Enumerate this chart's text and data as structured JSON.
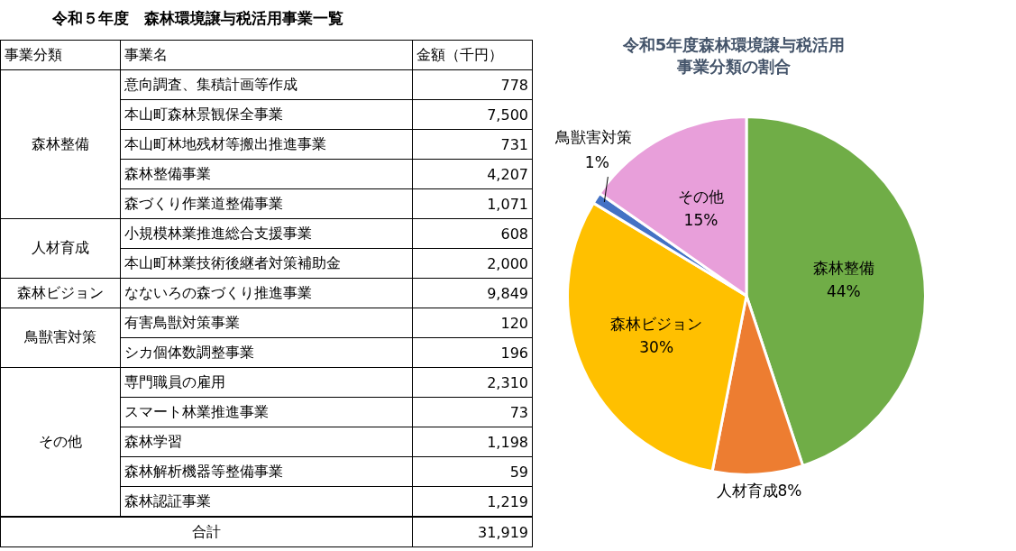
{
  "chart_data": [
    {
      "type": "other",
      "title": "令和５年度　森林環境譲与税活用事業一覧",
      "categories": [
        "意向調査、集積計画等作成",
        "本山町森林景観保全事業",
        "本山町林地残材等搬出推進事業",
        "森林整備事業",
        "森づくり作業道整備事業",
        "小規模林業推進総合支援事業",
        "本山町林業技術後継者対策補助金",
        "なないろの森づくり推進事業",
        "有害鳥獣対策事業",
        "シカ個体数調整事業",
        "専門職員の雇用",
        "スマート林業推進事業",
        "森林学習",
        "森林解析機器等整備事業",
        "森林認証事業"
      ],
      "value_labels": [
        "778",
        "7,500",
        "731",
        "4,207",
        "1,071",
        "608",
        "2,000",
        "9,849",
        "120",
        "196",
        "2,310",
        "73",
        "1,198",
        "59",
        "1,219"
      ],
      "annotations": [
        "事業分類",
        "事業名",
        "金額（千円）",
        {
          "text": "森林整備",
          "y": "意向調査、集積計画等作成"
        },
        {
          "text": "人材育成",
          "y": "小規模林業推進総合支援事業"
        },
        {
          "text": "森林ビジョン",
          "y": "なないろの森づくり推進事業"
        },
        {
          "text": "鳥獣害対策",
          "y": "有害鳥獣対策事業"
        },
        {
          "text": "その他",
          "y": "専門職員の雇用"
        },
        "合計"
      ],
      "totals": [
        "31,919"
      ]
    },
    {
      "type": "pie",
      "title": "令和5年度森林環境譲与税活用事業分類の割合",
      "categories": [
        "森林整備",
        "人材育成",
        "森林ビジョン",
        "鳥獣害対策",
        "その他"
      ],
      "values": [
        44,
        8,
        30,
        1,
        15
      ],
      "value_labels": [
        "44%",
        "8%",
        "30%",
        "1%",
        "15%"
      ],
      "colors": [
        "#70ad47",
        "#ed7d31",
        "#ffc000",
        "#4472c4",
        "#e89fda"
      ]
    }
  ]
}
